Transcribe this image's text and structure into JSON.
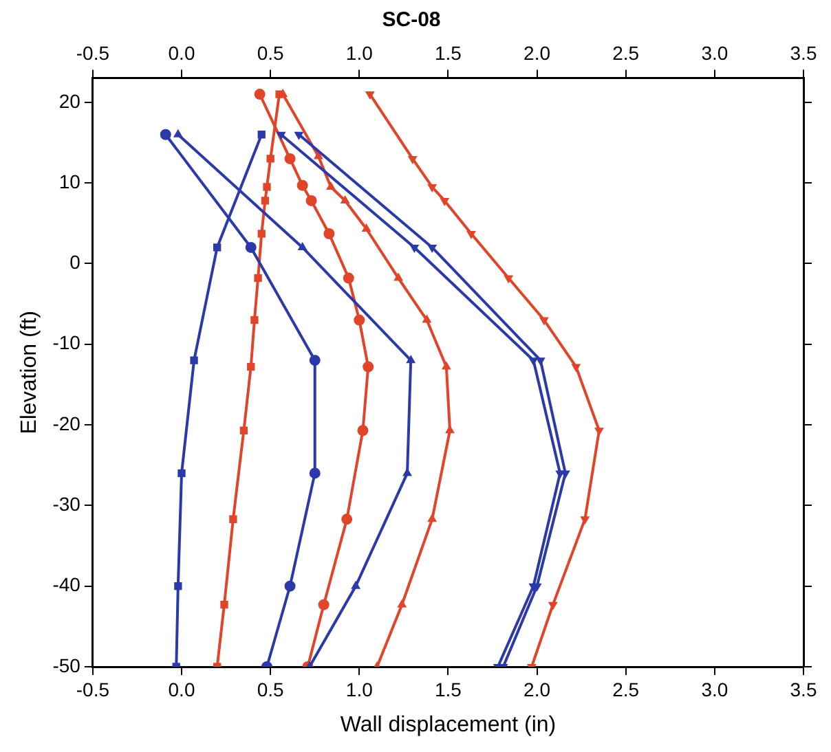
{
  "chart_data": {
    "type": "line",
    "title": "SC-08",
    "xlabel": "Wall displacement (in)",
    "ylabel": "Elevation (ft)",
    "xlim": [
      -0.5,
      3.5
    ],
    "xticks": [
      -0.5,
      {
        "value": 0,
        "label": "0.0"
      },
      0.5,
      {
        "value": 1,
        "label": "1.0"
      },
      1.5,
      {
        "value": 2,
        "label": "2.0"
      },
      2.5,
      {
        "value": 3,
        "label": "3.0"
      },
      3.5
    ],
    "x2lim": [
      -0.5,
      3.5
    ],
    "x2ticks": [
      -0.5,
      {
        "value": 0,
        "label": "0.0"
      },
      0.5,
      {
        "value": 1,
        "label": "1.0"
      },
      1.5,
      {
        "value": 2,
        "label": "2.0"
      },
      2.5,
      {
        "value": 3,
        "label": "3.0"
      },
      3.5
    ],
    "ylim": [
      -50,
      23
    ],
    "yticks": [
      -50,
      -40,
      -30,
      -20,
      -10,
      0,
      10,
      20
    ],
    "grid": false,
    "legend": false,
    "line_style": "solid",
    "series": [
      {
        "color": "#2b3aa8",
        "marker": "square",
        "x": [
          0.45,
          0.2,
          0.07,
          0.0,
          -0.02,
          -0.03
        ],
        "values": [
          16,
          2,
          -12,
          -26,
          -40,
          -50
        ]
      },
      {
        "color": "#2b3aa8",
        "marker": "circle",
        "x": [
          -0.09,
          0.39,
          0.75,
          0.75,
          0.61,
          0.48
        ],
        "values": [
          16,
          2,
          -12,
          -26,
          -40,
          -50
        ]
      },
      {
        "color": "#2b3aa8",
        "marker": "triangle",
        "x": [
          -0.02,
          0.68,
          1.29,
          1.27,
          0.98,
          0.72
        ],
        "values": [
          16,
          2,
          -12,
          -26,
          -40,
          -50
        ]
      },
      {
        "color": "#2b3aa8",
        "marker": "triangle_down",
        "x": [
          0.56,
          1.31,
          1.98,
          2.13,
          1.98,
          1.78
        ],
        "values": [
          16,
          2,
          -12,
          -26,
          -40,
          -50
        ]
      },
      {
        "color": "#2b3aa8",
        "marker": "triangle_down",
        "x": [
          0.66,
          1.41,
          2.02,
          2.16,
          2.0,
          1.81
        ],
        "values": [
          16,
          2,
          -12,
          -26,
          -40,
          -50
        ]
      },
      {
        "color": "#e0452a",
        "marker": "square",
        "x": [
          0.55,
          0.5,
          0.48,
          0.47,
          0.45,
          0.43,
          0.41,
          0.39,
          0.35,
          0.29,
          0.24,
          0.2
        ],
        "values": [
          21,
          13,
          9.5,
          7.8,
          3.7,
          -1.8,
          -7,
          -12.8,
          -20.7,
          -31.7,
          -42.3,
          -50
        ]
      },
      {
        "color": "#e0452a",
        "marker": "circle",
        "x": [
          0.44,
          0.61,
          0.68,
          0.73,
          0.83,
          0.94,
          1.0,
          1.05,
          1.02,
          0.93,
          0.8,
          0.71
        ],
        "values": [
          21,
          13,
          9.7,
          7.8,
          3.7,
          -1.8,
          -7,
          -12.8,
          -20.7,
          -31.7,
          -42.3,
          -50
        ]
      },
      {
        "color": "#e0452a",
        "marker": "triangle",
        "x": [
          0.57,
          0.77,
          0.84,
          0.92,
          1.04,
          1.22,
          1.38,
          1.49,
          1.51,
          1.41,
          1.24,
          1.1
        ],
        "values": [
          21,
          13.3,
          9.5,
          7.8,
          4.3,
          -1.8,
          -7,
          -12.8,
          -20.7,
          -31.7,
          -42.3,
          -50
        ]
      },
      {
        "color": "#e0452a",
        "marker": "triangle_down",
        "x": [
          1.06,
          1.3,
          1.41,
          1.48,
          1.63,
          1.84,
          2.04,
          2.22,
          2.35,
          2.27,
          2.09,
          1.97
        ],
        "values": [
          21,
          13,
          9.5,
          7.8,
          3.7,
          -1.8,
          -7,
          -12.8,
          -20.7,
          -31.7,
          -42.3,
          -50
        ]
      }
    ]
  }
}
